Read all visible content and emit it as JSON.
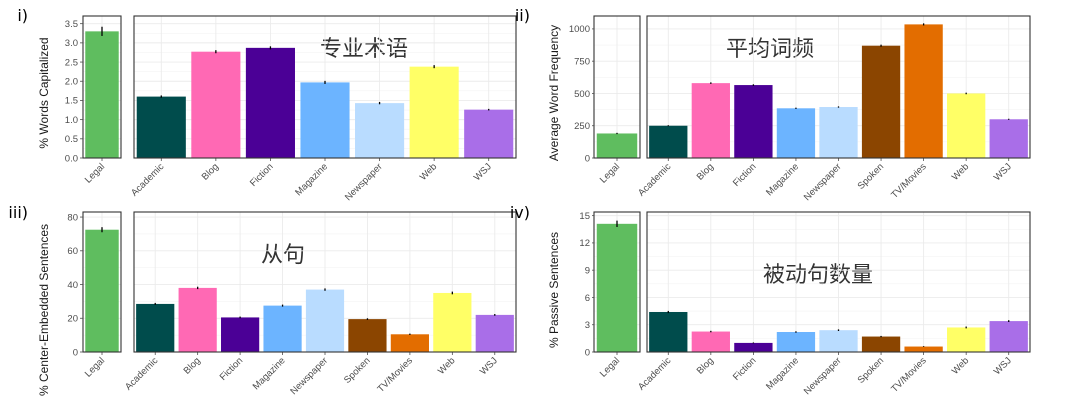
{
  "chart_data": [
    {
      "type": "bar",
      "panel_label": "i)",
      "annotation": "专业术语",
      "ylabel": "% Words Capitalized",
      "ylim": [
        0,
        3.7
      ],
      "yticks": [
        "0.0",
        "0.5",
        "1.0",
        "1.5",
        "2.0",
        "2.5",
        "3.0",
        "3.5"
      ],
      "legal": {
        "category": "Legal",
        "value": 3.3,
        "err": 0.12,
        "color": "#5fbd5f"
      },
      "categories": [
        "Academic",
        "Blog",
        "Fiction",
        "Magazine",
        "Newspaper",
        "Web",
        "WSJ"
      ],
      "values": [
        1.6,
        2.77,
        2.87,
        1.97,
        1.43,
        2.38,
        1.26
      ],
      "errors": [
        0.03,
        0.04,
        0.04,
        0.04,
        0.03,
        0.04,
        0.02
      ],
      "colors": [
        "#004c4c",
        "#ff69b4",
        "#4b0096",
        "#6cb4ff",
        "#b9dcff",
        "#ffff66",
        "#a96ee8"
      ]
    },
    {
      "type": "bar",
      "panel_label": "ii)",
      "annotation": "平均词频",
      "ylabel": "Average Word Frequency",
      "ylim": [
        0,
        1100
      ],
      "yticks": [
        "0",
        "250",
        "500",
        "750",
        "1000"
      ],
      "legal": {
        "category": "Legal",
        "value": 190,
        "err": 5,
        "color": "#5fbd5f"
      },
      "categories": [
        "Academic",
        "Blog",
        "Fiction",
        "Magazine",
        "Newspaper",
        "Spoken",
        "TV/Movies",
        "Web",
        "WSJ"
      ],
      "values": [
        250,
        580,
        565,
        385,
        395,
        870,
        1035,
        500,
        300
      ],
      "errors": [
        4,
        6,
        6,
        5,
        5,
        8,
        8,
        6,
        4
      ],
      "colors": [
        "#004c4c",
        "#ff69b4",
        "#4b0096",
        "#6cb4ff",
        "#b9dcff",
        "#8b4500",
        "#e36d00",
        "#ffff66",
        "#a96ee8"
      ]
    },
    {
      "type": "bar",
      "panel_label": "iii)",
      "annotation": "从句",
      "ylabel": "% Center-Embedded Sentences",
      "ylim": [
        0,
        83
      ],
      "yticks": [
        "0",
        "20",
        "40",
        "60",
        "80"
      ],
      "legal": {
        "category": "Legal",
        "value": 72.5,
        "err": 1.5,
        "color": "#5fbd5f"
      },
      "categories": [
        "Academic",
        "Blog",
        "Fiction",
        "Magazine",
        "Newspaper",
        "Spoken",
        "TV/Movies",
        "Web",
        "WSJ"
      ],
      "values": [
        28.5,
        38,
        20.5,
        27.5,
        37,
        19.5,
        10.5,
        35,
        22
      ],
      "errors": [
        0.6,
        0.7,
        0.5,
        0.6,
        0.7,
        0.5,
        0.4,
        0.8,
        0.5
      ],
      "colors": [
        "#004c4c",
        "#ff69b4",
        "#4b0096",
        "#6cb4ff",
        "#b9dcff",
        "#8b4500",
        "#e36d00",
        "#ffff66",
        "#a96ee8"
      ]
    },
    {
      "type": "bar",
      "panel_label": "iv)",
      "annotation": "被动句数量",
      "ylabel": "% Passive Sentences",
      "ylim": [
        0,
        15.4
      ],
      "yticks": [
        "0",
        "3",
        "6",
        "9",
        "12",
        "15"
      ],
      "legal": {
        "category": "Legal",
        "value": 14.1,
        "err": 0.35,
        "color": "#5fbd5f"
      },
      "categories": [
        "Academic",
        "Blog",
        "Fiction",
        "Magazine",
        "Newspaper",
        "Spoken",
        "TV/Movies",
        "Web",
        "WSJ"
      ],
      "values": [
        4.4,
        2.25,
        1.0,
        2.2,
        2.4,
        1.7,
        0.6,
        2.7,
        3.4
      ],
      "errors": [
        0.12,
        0.08,
        0.05,
        0.08,
        0.09,
        0.07,
        0.04,
        0.1,
        0.1
      ],
      "colors": [
        "#004c4c",
        "#ff69b4",
        "#4b0096",
        "#6cb4ff",
        "#b9dcff",
        "#8b4500",
        "#e36d00",
        "#ffff66",
        "#a96ee8"
      ]
    }
  ]
}
